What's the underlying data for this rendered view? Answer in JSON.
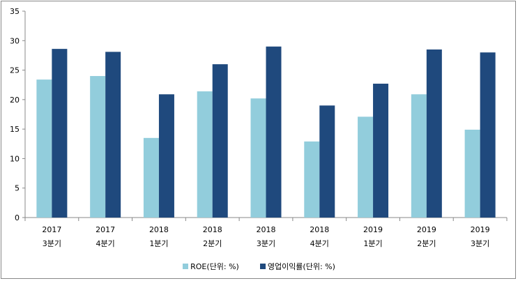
{
  "chart_data": {
    "type": "bar",
    "title": "",
    "xlabel": "",
    "ylabel": "",
    "ylim": [
      0,
      35
    ],
    "yticks": [
      0,
      5,
      10,
      15,
      20,
      25,
      30,
      35
    ],
    "categories": [
      [
        "2017",
        "3분기"
      ],
      [
        "2017",
        "4분기"
      ],
      [
        "2018",
        "1분기"
      ],
      [
        "2018",
        "2분기"
      ],
      [
        "2018",
        "3분기"
      ],
      [
        "2018",
        "4분기"
      ],
      [
        "2019",
        "1분기"
      ],
      [
        "2019",
        "2분기"
      ],
      [
        "2019",
        "3분기"
      ]
    ],
    "series": [
      {
        "name": "ROE(단위: %)",
        "color": "#92CDDC",
        "values": [
          23.4,
          24.0,
          13.5,
          21.4,
          20.2,
          12.9,
          17.1,
          20.9,
          14.9
        ]
      },
      {
        "name": "영업이익률(단위: %)",
        "color": "#1F497D",
        "values": [
          28.6,
          28.1,
          20.9,
          26.0,
          29.0,
          19.0,
          22.7,
          28.5,
          28.0
        ]
      }
    ],
    "legend": "bottom",
    "grid": false
  }
}
